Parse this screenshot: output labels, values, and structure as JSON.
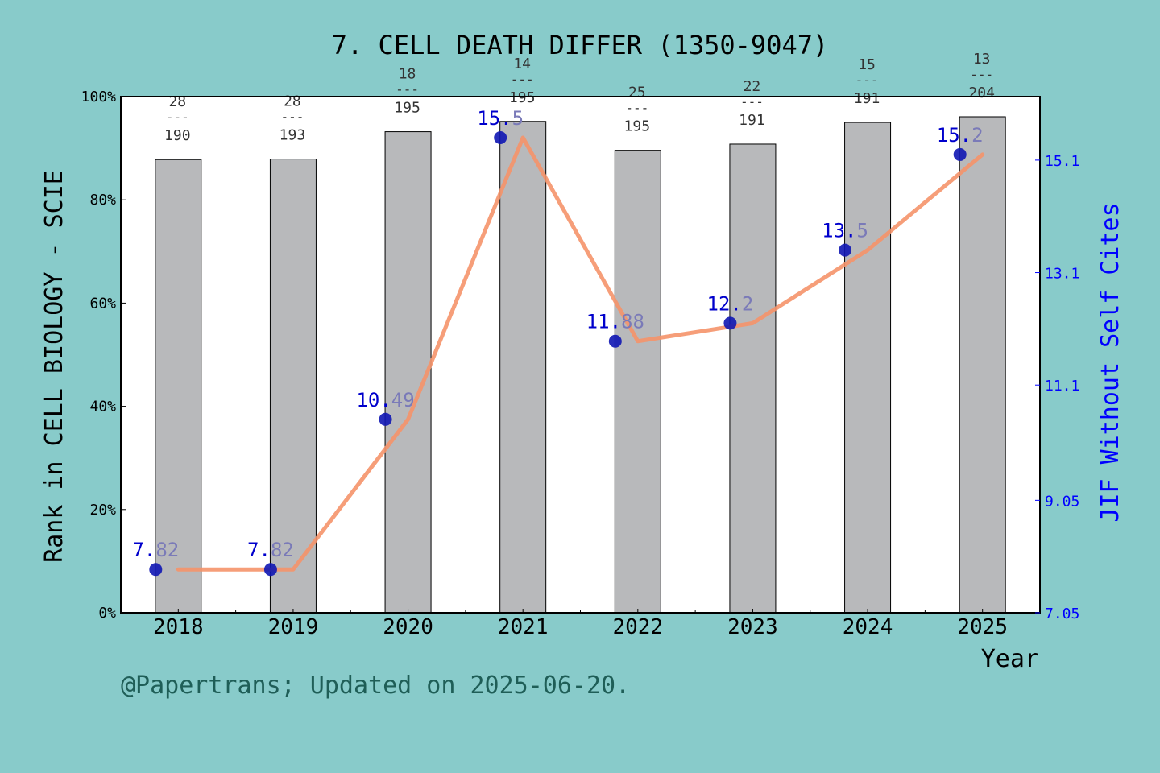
{
  "chart_data": {
    "type": "bar+line",
    "title": "7. CELL DEATH DIFFER (1350-9047)",
    "categories": [
      "2018",
      "2019",
      "2020",
      "2021",
      "2022",
      "2023",
      "2024",
      "2025"
    ],
    "bars": {
      "name": "Rank in CELL BIOLOGY - SCIE",
      "percent_values": [
        87.8,
        87.9,
        93.2,
        95.2,
        89.6,
        90.8,
        95.0,
        96.1
      ],
      "rank_labels": [
        {
          "rank": "28",
          "total": "190"
        },
        {
          "rank": "28",
          "total": "193"
        },
        {
          "rank": "18",
          "total": "195"
        },
        {
          "rank": "14",
          "total": "195"
        },
        {
          "rank": "25",
          "total": "195"
        },
        {
          "rank": "22",
          "total": "191"
        },
        {
          "rank": "15",
          "total": "191"
        },
        {
          "rank": "13",
          "total": "204"
        }
      ]
    },
    "line": {
      "name": "JIF Without Self Cites",
      "values": [
        7.82,
        7.82,
        10.49,
        15.5,
        11.88,
        12.2,
        13.5,
        15.2
      ],
      "labels": [
        "7.82",
        "7.82",
        "10.49",
        "15.5",
        "11.88",
        "12.2",
        "13.5",
        "15.2"
      ]
    },
    "xlabel": "Year",
    "ylabel_left": "Rank in CELL BIOLOGY - SCIE",
    "ylabel_right": "JIF Without Self Cites",
    "ylim_left": [
      0,
      100
    ],
    "yticks_left": [
      "0%",
      "20%",
      "40%",
      "60%",
      "80%",
      "100%"
    ],
    "ylim_right": [
      7.05,
      16.23
    ],
    "yticks_right": [
      "7.05",
      "9.05",
      "11.1",
      "13.1",
      "15.1"
    ],
    "yticks_right_values": [
      7.05,
      9.05,
      11.1,
      13.1,
      15.1
    ],
    "rank_separator": "---",
    "colors": {
      "background": "#88cbca",
      "plot_area": "#ffffff",
      "bar_fill": "#b8b9bb",
      "line": "#f5936a",
      "marker": "#0f16b4",
      "right_axis": "#0000ff"
    },
    "grid": false
  },
  "footer": "@Papertrans; Updated on 2025-06-20."
}
